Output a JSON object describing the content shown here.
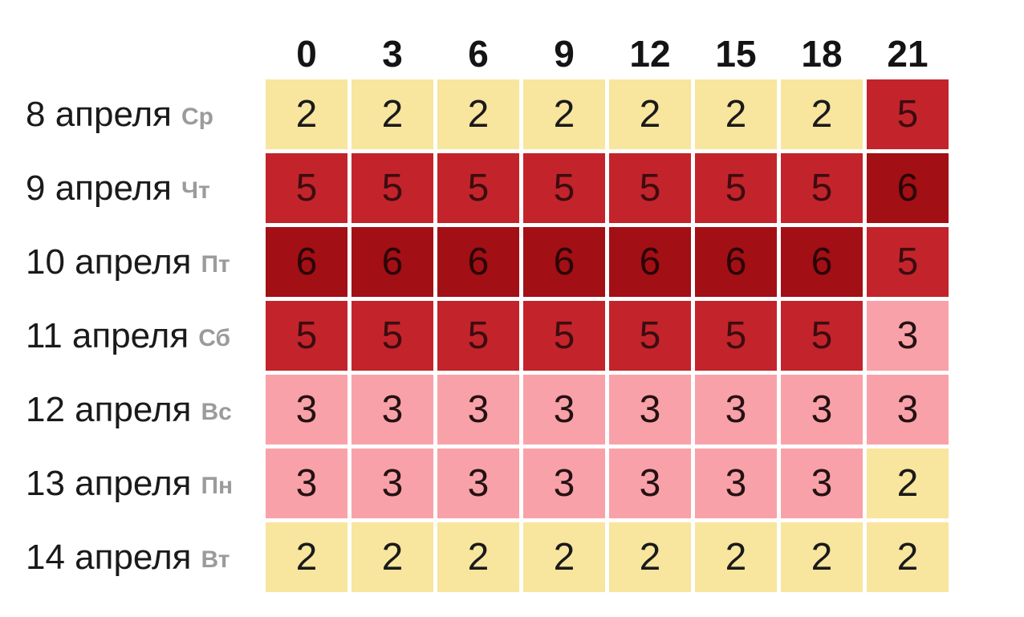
{
  "page": {
    "background_color": "#ffffff",
    "label_day_color": "#9b9b9b",
    "header_text_color": "#141414",
    "date_text_color": "#1a1a1a"
  },
  "chart_data": {
    "type": "heatmap",
    "title": "",
    "xlabel": "",
    "ylabel": "",
    "x": [
      "0",
      "3",
      "6",
      "9",
      "12",
      "15",
      "18",
      "21"
    ],
    "rows": [
      {
        "date": "8 апреля",
        "day": "Ср",
        "values": [
          2,
          2,
          2,
          2,
          2,
          2,
          2,
          5
        ]
      },
      {
        "date": "9 апреля",
        "day": "Чт",
        "values": [
          5,
          5,
          5,
          5,
          5,
          5,
          5,
          6
        ]
      },
      {
        "date": "10 апреля",
        "day": "Пт",
        "values": [
          6,
          6,
          6,
          6,
          6,
          6,
          6,
          5
        ]
      },
      {
        "date": "11 апреля",
        "day": "Сб",
        "values": [
          5,
          5,
          5,
          5,
          5,
          5,
          5,
          3
        ]
      },
      {
        "date": "12 апреля",
        "day": "Вс",
        "values": [
          3,
          3,
          3,
          3,
          3,
          3,
          3,
          3
        ]
      },
      {
        "date": "13 апреля",
        "day": "Пн",
        "values": [
          3,
          3,
          3,
          3,
          3,
          3,
          3,
          2
        ]
      },
      {
        "date": "14 апреля",
        "day": "Вт",
        "values": [
          2,
          2,
          2,
          2,
          2,
          2,
          2,
          2
        ]
      }
    ],
    "value_cell_colors": {
      "2": "#F8E59E",
      "3": "#F9A1A8",
      "5": "#C3242B",
      "6": "#A20F15"
    },
    "value_text_colors": {
      "2": "#1a1a1a",
      "3": "#241113",
      "5": "#3d0c10",
      "6": "#2a0507"
    },
    "grid": false,
    "legend": false
  }
}
